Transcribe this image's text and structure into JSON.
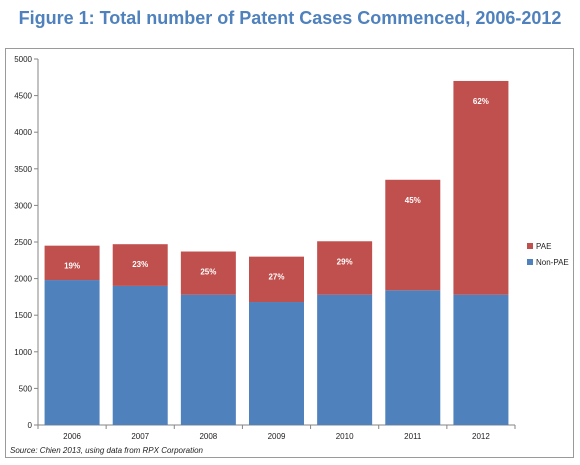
{
  "title": "Figure 1: Total number of Patent Cases Commenced, 2006-2012",
  "source": "Source: Chien 2013, using data from RPX Corporation",
  "colors": {
    "pae": "#c0504d",
    "non_pae": "#4f81bd",
    "title": "#4f81bd"
  },
  "chart_data": {
    "type": "bar",
    "stacked": true,
    "categories": [
      "2006",
      "2007",
      "2008",
      "2009",
      "2010",
      "2011",
      "2012"
    ],
    "series": [
      {
        "name": "Non-PAE",
        "color": "#4f81bd",
        "values": [
          1980,
          1900,
          1780,
          1680,
          1780,
          1840,
          1780
        ]
      },
      {
        "name": "PAE",
        "color": "#c0504d",
        "values": [
          470,
          570,
          590,
          620,
          730,
          1510,
          2920
        ]
      }
    ],
    "pae_share_labels": [
      "19%",
      "23%",
      "25%",
      "27%",
      "29%",
      "45%",
      "62%"
    ],
    "ylim": [
      0,
      5000
    ],
    "yticks": [
      0,
      500,
      1000,
      1500,
      2000,
      2500,
      3000,
      3500,
      4000,
      4500,
      5000
    ],
    "legend_entries": [
      "PAE",
      "Non-PAE"
    ],
    "legend_position": "right",
    "grid": false
  }
}
